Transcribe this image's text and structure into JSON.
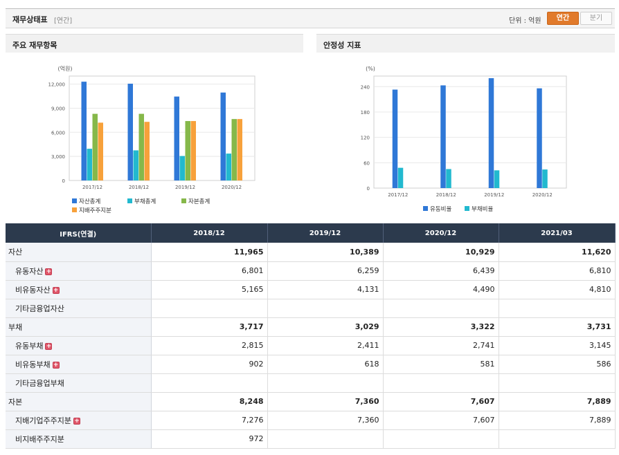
{
  "header": {
    "title": "재무상태표",
    "subtitle": "[연간]",
    "unit_label": "단위 : 억원",
    "toggle_annual": "연간",
    "toggle_quarter": "분기"
  },
  "panels": {
    "left_title": "주요 재무항목",
    "right_title": "안정성 지표"
  },
  "colors": {
    "total_assets": "#2f78d7",
    "total_liabilities": "#22b9cf",
    "total_equity": "#86b84a",
    "controlling_equity": "#f7a13b",
    "header_bg": "#2c3a4d",
    "accent": "#e17a2b"
  },
  "chart_data": [
    {
      "type": "bar",
      "ylabel": "(억원)",
      "categories": [
        "2017/12",
        "2018/12",
        "2019/12",
        "2020/12"
      ],
      "ylim": [
        0,
        13000
      ],
      "yticks": [
        0,
        3000,
        6000,
        9000,
        12000
      ],
      "ytick_labels": [
        "0",
        "3,000",
        "6,000",
        "9,000",
        "12,000"
      ],
      "legend": "bottom-left",
      "series": [
        {
          "name": "자산총계",
          "color": "#2f78d7",
          "values": [
            12300,
            12050,
            10450,
            10950
          ]
        },
        {
          "name": "부채총계",
          "color": "#22b9cf",
          "values": [
            3950,
            3750,
            3050,
            3350
          ]
        },
        {
          "name": "자본총계",
          "color": "#86b84a",
          "values": [
            8300,
            8300,
            7400,
            7650
          ]
        },
        {
          "name": "지배주주지분",
          "color": "#f7a13b",
          "values": [
            7200,
            7300,
            7400,
            7650
          ]
        }
      ]
    },
    {
      "type": "bar",
      "ylabel": "(%)",
      "categories": [
        "2017/12",
        "2018/12",
        "2019/12",
        "2020/12"
      ],
      "ylim": [
        0,
        265
      ],
      "yticks": [
        0,
        60,
        120,
        180,
        240
      ],
      "ytick_labels": [
        "0",
        "60",
        "120",
        "180",
        "240"
      ],
      "legend": "bottom-center",
      "series": [
        {
          "name": "유동비율",
          "color": "#2f78d7",
          "values": [
            233,
            243,
            260,
            236
          ]
        },
        {
          "name": "부채비율",
          "color": "#22b9cf",
          "values": [
            48,
            45,
            42,
            44
          ]
        }
      ]
    }
  ],
  "table": {
    "columns": [
      "IFRS(연결)",
      "2018/12",
      "2019/12",
      "2020/12",
      "2021/03"
    ],
    "rows": [
      {
        "label": "자산",
        "major": true,
        "plus": false,
        "values": [
          "11,965",
          "10,389",
          "10,929",
          "11,620"
        ]
      },
      {
        "label": "유동자산",
        "major": false,
        "plus": true,
        "values": [
          "6,801",
          "6,259",
          "6,439",
          "6,810"
        ]
      },
      {
        "label": "비유동자산",
        "major": false,
        "plus": true,
        "values": [
          "5,165",
          "4,131",
          "4,490",
          "4,810"
        ]
      },
      {
        "label": "기타금융업자산",
        "major": false,
        "plus": false,
        "values": [
          "",
          "",
          "",
          ""
        ]
      },
      {
        "label": "부채",
        "major": true,
        "plus": false,
        "values": [
          "3,717",
          "3,029",
          "3,322",
          "3,731"
        ]
      },
      {
        "label": "유동부채",
        "major": false,
        "plus": true,
        "values": [
          "2,815",
          "2,411",
          "2,741",
          "3,145"
        ]
      },
      {
        "label": "비유동부채",
        "major": false,
        "plus": true,
        "values": [
          "902",
          "618",
          "581",
          "586"
        ]
      },
      {
        "label": "기타금융업부채",
        "major": false,
        "plus": false,
        "values": [
          "",
          "",
          "",
          ""
        ]
      },
      {
        "label": "자본",
        "major": true,
        "plus": false,
        "values": [
          "8,248",
          "7,360",
          "7,607",
          "7,889"
        ]
      },
      {
        "label": "지배기업주주지분",
        "major": false,
        "plus": true,
        "values": [
          "7,276",
          "7,360",
          "7,607",
          "7,889"
        ]
      },
      {
        "label": "비지배주주지분",
        "major": false,
        "plus": false,
        "values": [
          "972",
          "",
          "",
          ""
        ]
      }
    ]
  }
}
